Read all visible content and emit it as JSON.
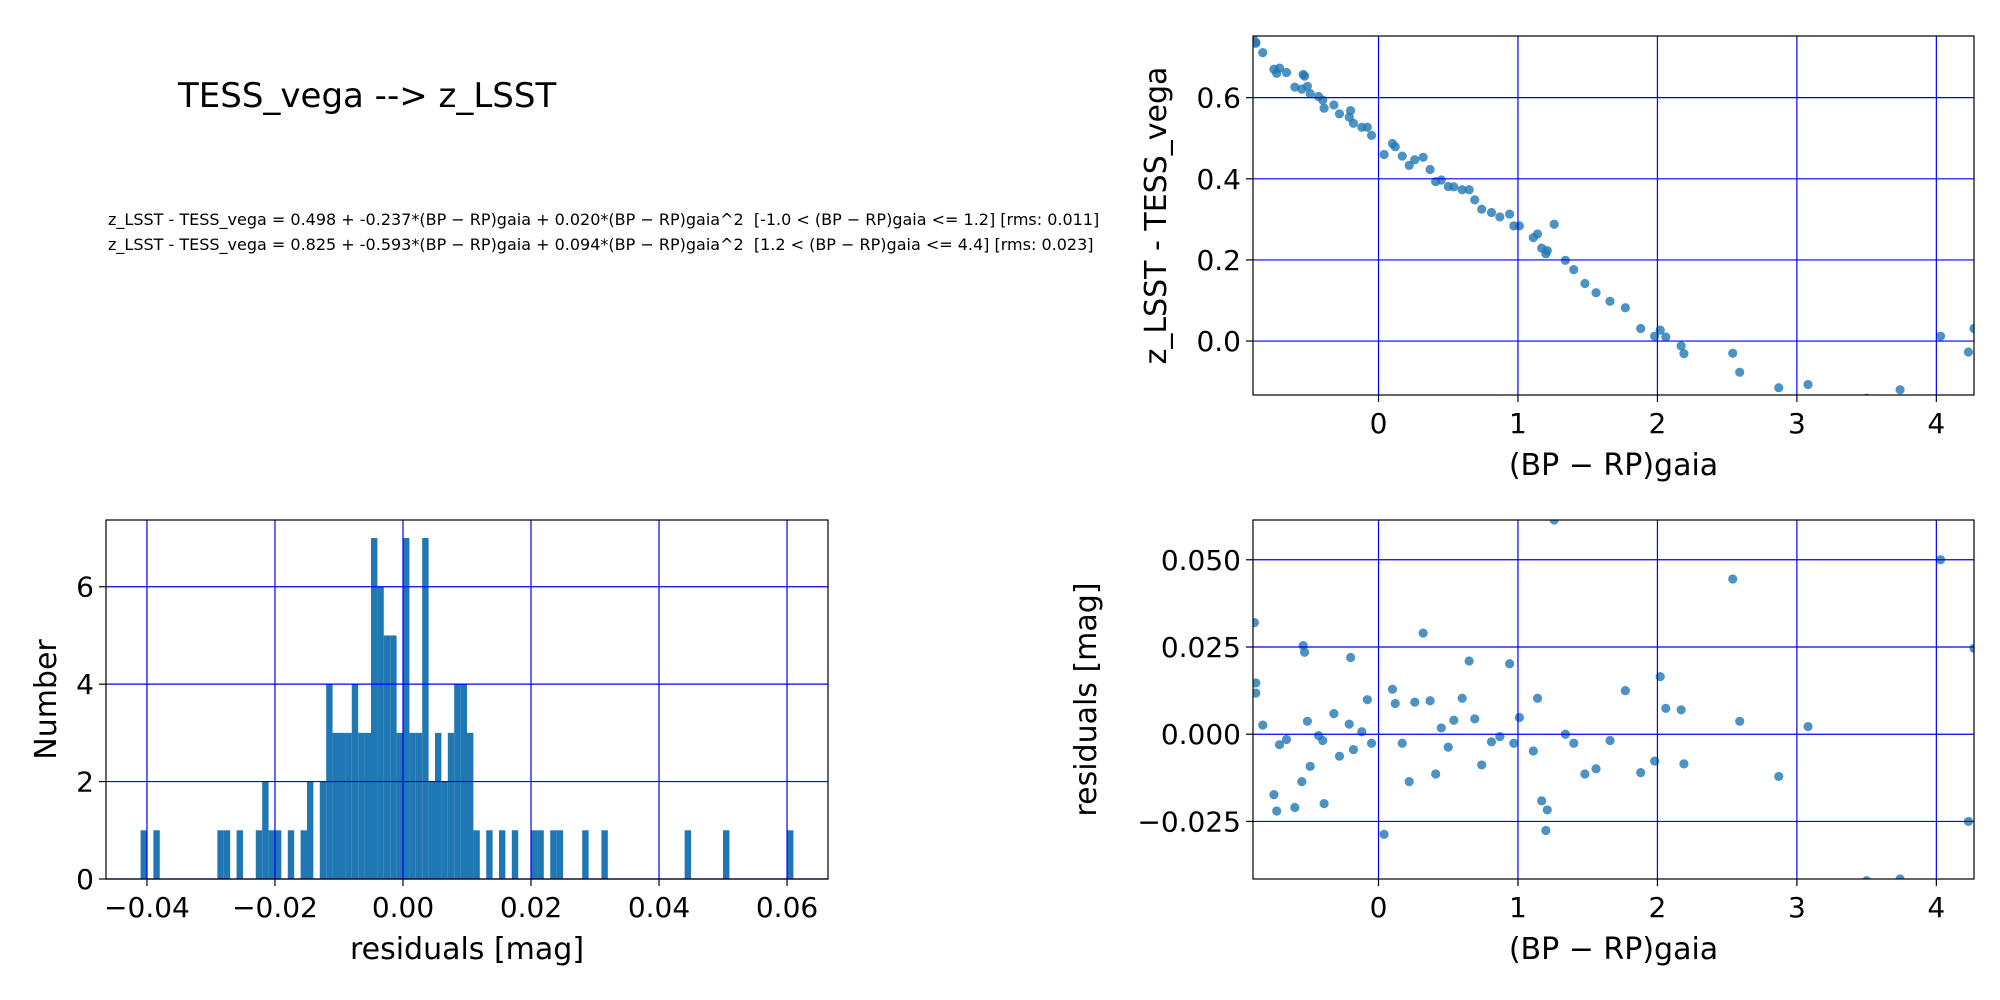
{
  "header": {
    "title": "TESS_vega --> z_LSST",
    "fit_lines": [
      "z_LSST - TESS_vega = 0.498 + -0.237*(BP − RP)gaia + 0.020*(BP − RP)gaia^2  [-1.0 < (BP − RP)gaia <= 1.2] [rms: 0.011]",
      "z_LSST - TESS_vega = 0.825 + -0.593*(BP − RP)gaia + 0.094*(BP − RP)gaia^2  [1.2 < (BP − RP)gaia <= 4.4] [rms: 0.023]"
    ]
  },
  "chart_data": [
    {
      "type": "scatter",
      "xlabel": "(BP − RP)gaia",
      "ylabel": "z_LSST - TESS_vega",
      "color": "#1f77b4",
      "grid": true,
      "grid_color": "#0000ff",
      "xlim": [
        -0.9,
        4.27
      ],
      "ylim": [
        -0.133,
        0.752
      ],
      "xticks": [
        0,
        1,
        2,
        3,
        4
      ],
      "yticks": [
        {
          "value": 0,
          "label": "0.0"
        },
        {
          "value": 0.2,
          "label": "0.2"
        },
        {
          "value": 0.4,
          "label": "0.4"
        },
        {
          "value": 0.6,
          "label": "0.6"
        }
      ],
      "x": [
        -0.89,
        -0.88,
        -0.88,
        -0.83,
        -0.75,
        -0.73,
        -0.71,
        -0.66,
        -0.6,
        -0.55,
        -0.54,
        -0.53,
        -0.51,
        -0.49,
        -0.43,
        -0.4,
        -0.39,
        -0.32,
        -0.28,
        -0.21,
        -0.2,
        -0.18,
        -0.12,
        -0.08,
        -0.05,
        0.04,
        0.1,
        0.12,
        0.17,
        0.22,
        0.26,
        0.32,
        0.37,
        0.41,
        0.45,
        0.5,
        0.54,
        0.6,
        0.65,
        0.69,
        0.74,
        0.81,
        0.87,
        0.94,
        0.97,
        1.01,
        1.11,
        1.14,
        1.17,
        1.2,
        1.21,
        1.26,
        1.34,
        1.4,
        1.48,
        1.56,
        1.66,
        1.77,
        1.88,
        1.98,
        2.02,
        2.06,
        2.17,
        2.19,
        2.54,
        2.59,
        2.87,
        3.08,
        3.5,
        3.74,
        4.03,
        4.23,
        4.27
      ],
      "y": [
        0.757,
        0.737,
        0.734,
        0.711,
        0.67,
        0.66,
        0.673,
        0.662,
        0.626,
        0.621,
        0.657,
        0.653,
        0.628,
        0.61,
        0.603,
        0.594,
        0.574,
        0.582,
        0.56,
        0.552,
        0.568,
        0.537,
        0.527,
        0.527,
        0.507,
        0.46,
        0.487,
        0.479,
        0.456,
        0.433,
        0.447,
        0.453,
        0.423,
        0.393,
        0.397,
        0.381,
        0.38,
        0.373,
        0.373,
        0.348,
        0.325,
        0.317,
        0.306,
        0.313,
        0.284,
        0.284,
        0.255,
        0.264,
        0.229,
        0.215,
        0.223,
        0.288,
        0.199,
        0.176,
        0.142,
        0.119,
        0.098,
        0.082,
        0.031,
        0.012,
        0.027,
        0.01,
        -0.012,
        -0.031,
        -0.03,
        -0.077,
        -0.115,
        -0.107,
        -0.141,
        -0.12,
        0.012,
        -0.027,
        0.031
      ]
    },
    {
      "type": "histogram",
      "xlabel": "residuals [mag]",
      "ylabel": "Number",
      "color": "#1f77b4",
      "grid": true,
      "grid_color": "#0000ff",
      "xlim": [
        -0.0464,
        0.0664
      ],
      "ylim": [
        0,
        7.37
      ],
      "xticks": [
        {
          "value": -0.04,
          "label": "−0.04"
        },
        {
          "value": -0.02,
          "label": "−0.02"
        },
        {
          "value": 0,
          "label": "0.00"
        },
        {
          "value": 0.02,
          "label": "0.02"
        },
        {
          "value": 0.04,
          "label": "0.04"
        },
        {
          "value": 0.06,
          "label": "0.06"
        }
      ],
      "yticks": [
        0,
        2,
        4,
        6
      ],
      "bins": [
        -0.042,
        -0.041,
        -0.04,
        -0.039,
        -0.038,
        -0.037,
        -0.036,
        -0.035,
        -0.034,
        -0.033,
        -0.032,
        -0.031,
        -0.03,
        -0.029,
        -0.028,
        -0.027,
        -0.026,
        -0.025,
        -0.024,
        -0.023,
        -0.022,
        -0.021,
        -0.02,
        -0.019,
        -0.018,
        -0.017,
        -0.016,
        -0.015,
        -0.014,
        -0.013,
        -0.012,
        -0.011,
        -0.01,
        -0.009,
        -0.008,
        -0.007,
        -0.006,
        -0.005,
        -0.004,
        -0.003,
        -0.002,
        -0.001,
        0,
        0.001,
        0.002,
        0.003,
        0.004,
        0.005,
        0.006,
        0.007,
        0.008,
        0.009,
        0.01,
        0.011,
        0.012,
        0.013,
        0.014,
        0.015,
        0.016,
        0.017,
        0.018,
        0.019,
        0.02,
        0.021,
        0.022,
        0.023,
        0.024,
        0.025,
        0.026,
        0.027,
        0.028,
        0.029,
        0.03,
        0.031,
        0.032,
        0.033,
        0.034,
        0.035,
        0.036,
        0.037,
        0.038,
        0.039,
        0.04,
        0.041,
        0.042,
        0.043,
        0.044,
        0.045,
        0.046,
        0.047,
        0.048,
        0.049,
        0.05,
        0.051,
        0.052,
        0.053,
        0.054,
        0.055,
        0.056,
        0.057,
        0.058,
        0.059,
        0.06,
        0.061,
        0.062
      ],
      "counts": [
        0,
        1,
        0,
        1,
        0,
        0,
        0,
        0,
        0,
        0,
        0,
        0,
        0,
        1,
        1,
        0,
        1,
        0,
        0,
        1,
        2,
        1,
        1,
        0,
        1,
        0,
        1,
        2,
        0,
        2,
        4,
        3,
        3,
        3,
        4,
        3,
        3,
        7,
        6,
        5,
        5,
        3,
        7,
        3,
        3,
        7,
        2,
        3,
        2,
        3,
        4,
        4,
        3,
        1,
        0,
        1,
        0,
        1,
        0,
        1,
        0,
        0,
        1,
        1,
        0,
        1,
        1,
        0,
        0,
        0,
        1,
        0,
        0,
        1,
        0,
        0,
        0,
        0,
        0,
        0,
        0,
        0,
        0,
        0,
        0,
        0,
        1,
        0,
        0,
        0,
        0,
        0,
        1,
        0,
        0,
        0,
        0,
        0,
        0,
        0,
        0,
        0,
        1,
        0
      ]
    },
    {
      "type": "scatter",
      "xlabel": "(BP − RP)gaia",
      "ylabel": "residuals [mag]",
      "color": "#1f77b4",
      "grid": true,
      "grid_color": "#0000ff",
      "xlim": [
        -0.9,
        4.27
      ],
      "ylim": [
        -0.0415,
        0.0614
      ],
      "xticks": [
        0,
        1,
        2,
        3,
        4
      ],
      "yticks": [
        {
          "value": -0.025,
          "label": "−0.025"
        },
        {
          "value": 0,
          "label": "0.000"
        },
        {
          "value": 0.025,
          "label": "0.025"
        },
        {
          "value": 0.05,
          "label": "0.050"
        }
      ],
      "x": [
        -0.89,
        -0.88,
        -0.88,
        -0.83,
        -0.75,
        -0.73,
        -0.71,
        -0.66,
        -0.6,
        -0.55,
        -0.54,
        -0.53,
        -0.51,
        -0.49,
        -0.43,
        -0.4,
        -0.39,
        -0.32,
        -0.28,
        -0.21,
        -0.2,
        -0.18,
        -0.12,
        -0.08,
        -0.05,
        0.04,
        0.1,
        0.12,
        0.17,
        0.22,
        0.26,
        0.32,
        0.37,
        0.41,
        0.45,
        0.5,
        0.54,
        0.6,
        0.65,
        0.69,
        0.74,
        0.81,
        0.87,
        0.94,
        0.97,
        1.01,
        1.11,
        1.14,
        1.17,
        1.2,
        1.21,
        1.26,
        1.34,
        1.4,
        1.48,
        1.56,
        1.66,
        1.77,
        1.88,
        1.98,
        2.02,
        2.06,
        2.17,
        2.19,
        2.54,
        2.59,
        2.87,
        3.08,
        3.5,
        3.74,
        4.03,
        4.23,
        4.27
      ],
      "y": [
        0.032,
        0.0147,
        0.0118,
        0.0026,
        -0.0173,
        -0.022,
        -0.003,
        -0.0015,
        -0.021,
        -0.0136,
        0.0254,
        0.0235,
        0.0037,
        -0.0092,
        -0.0004,
        -0.0018,
        -0.0199,
        0.0059,
        -0.0063,
        0.0029,
        0.022,
        -0.0044,
        0.0007,
        0.0099,
        -0.0026,
        -0.0287,
        0.0129,
        0.0088,
        -0.0026,
        -0.0136,
        0.0092,
        0.029,
        0.0096,
        -0.0114,
        0.0018,
        -0.0037,
        0.004,
        0.0103,
        0.021,
        0.0044,
        -0.0088,
        -0.0022,
        -0.0007,
        0.0202,
        -0.0026,
        0.0048,
        -0.0048,
        0.0103,
        -0.0191,
        -0.0276,
        -0.0217,
        0.0614,
        0,
        -0.0026,
        -0.0114,
        -0.0099,
        -0.0018,
        0.0125,
        -0.011,
        -0.0077,
        0.0165,
        0.0074,
        0.007,
        -0.0085,
        0.0445,
        0.0037,
        -0.0121,
        0.0022,
        -0.042,
        -0.0415,
        0.05,
        -0.025,
        0.0246
      ]
    }
  ]
}
